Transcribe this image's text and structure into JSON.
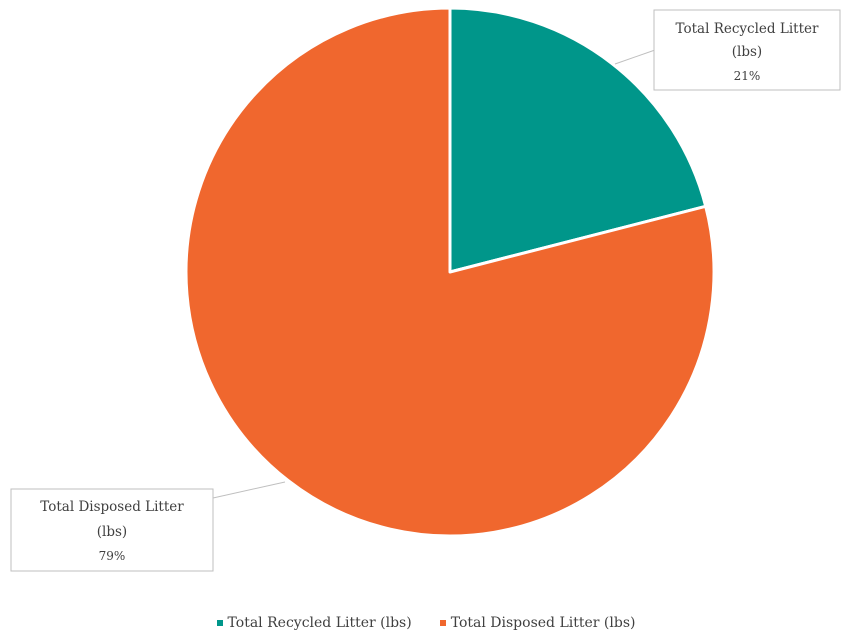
{
  "chart_data": {
    "type": "pie",
    "categories": [
      "Total Recycled Litter (lbs)",
      "Total Disposed Litter (lbs)"
    ],
    "values": [
      21,
      79
    ],
    "colors": [
      "#00968A",
      "#F0672E"
    ],
    "data_labels": [
      {
        "line1": "Total Recycled Litter",
        "line2": "(lbs)",
        "pct": "21%"
      },
      {
        "line1": "Total Disposed Litter",
        "line2": "(lbs)",
        "pct": "79%"
      }
    ],
    "legend": {
      "placement": "bottom",
      "items": [
        "Total Recycled Litter (lbs)",
        "Total Disposed Litter (lbs)"
      ]
    },
    "title": ""
  }
}
